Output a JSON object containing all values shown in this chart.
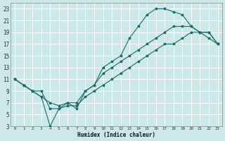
{
  "xlabel": "Humidex (Indice chaleur)",
  "bg_color": "#cce8e8",
  "grid_color": "#ffffff",
  "line_color": "#1a6b6b",
  "xlim": [
    -0.5,
    23.5
  ],
  "ylim": [
    3,
    24
  ],
  "xticks": [
    0,
    1,
    2,
    3,
    4,
    5,
    6,
    7,
    8,
    9,
    10,
    11,
    12,
    13,
    14,
    15,
    16,
    17,
    18,
    19,
    20,
    21,
    22,
    23
  ],
  "yticks": [
    3,
    5,
    7,
    9,
    11,
    13,
    15,
    17,
    19,
    21,
    23
  ],
  "line1": {
    "x": [
      0,
      1,
      2,
      3,
      4,
      5,
      6,
      7,
      8,
      9,
      10,
      11,
      12,
      13,
      14,
      15,
      16,
      17,
      18,
      19,
      20,
      21,
      22,
      23
    ],
    "y": [
      11,
      10,
      9,
      9,
      6,
      6,
      7,
      6,
      9,
      10,
      13,
      14,
      15,
      18,
      20,
      22,
      23,
      23,
      22.5,
      22,
      20,
      19,
      19,
      17
    ]
  },
  "line2": {
    "x": [
      0,
      1,
      2,
      3,
      4,
      5,
      6,
      7,
      8,
      9,
      10,
      11,
      12,
      13,
      14,
      15,
      16,
      17,
      18,
      19,
      20,
      21,
      22,
      23
    ],
    "y": [
      11,
      10,
      9,
      8,
      7,
      6.5,
      7,
      7,
      9,
      10,
      12,
      13,
      14,
      15,
      16,
      17,
      18,
      19,
      20,
      20,
      20,
      19,
      19,
      17
    ]
  },
  "line3": {
    "x": [
      0,
      1,
      2,
      3,
      4,
      5,
      6,
      7,
      8,
      9,
      10,
      11,
      12,
      13,
      14,
      15,
      16,
      17,
      18,
      19,
      20,
      21,
      22,
      23
    ],
    "y": [
      11,
      10,
      9,
      8,
      3,
      6,
      6.5,
      6.5,
      8,
      9,
      10,
      11,
      12,
      13,
      14,
      15,
      16,
      17,
      17,
      18,
      19,
      19,
      18,
      17
    ]
  }
}
